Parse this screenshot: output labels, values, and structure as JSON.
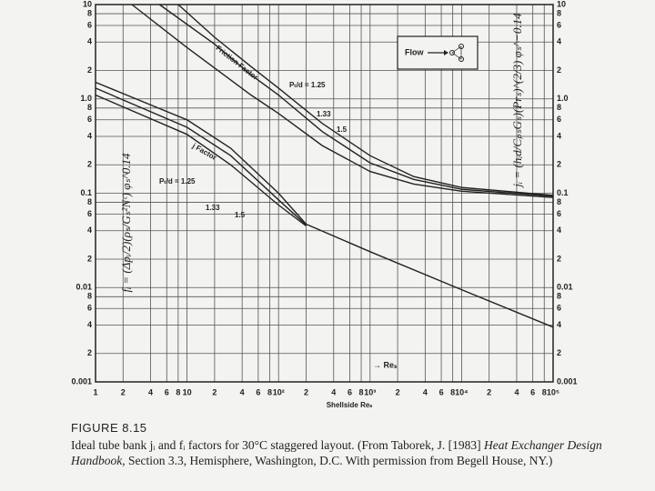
{
  "chart_data": {
    "type": "line",
    "xlabel": "Shellside Reₛ",
    "x_arrow_label": "→ Reₛ",
    "ylabel_left": "fᵢ = (Δpᵢ/2)(ρₛ/Gₛ²Nᶜ) φₛ^0.14",
    "ylabel_right": "jᵢ = (hᵢd/CₚₛGₛ)(Prₛ)^(2/3) φₛ^−0.14",
    "flow_label": "Flow",
    "annotations": [
      "Friction Factor",
      "j Factor",
      "Pₜ/d = 1.25",
      "1.33",
      "1.5",
      "Pₜ/d = 1.25",
      "1.33",
      "1.5"
    ],
    "log_x": true,
    "log_y": true,
    "grid": true,
    "xlim": [
      1,
      100000
    ],
    "ylim": [
      0.001,
      10
    ],
    "xticks": [
      1,
      2,
      4,
      6,
      8,
      10,
      {
        "value": 20,
        "label": "2"
      },
      {
        "value": 40,
        "label": "4"
      },
      {
        "value": 60,
        "label": "6"
      },
      {
        "value": 80,
        "label": "8"
      },
      {
        "value": 100,
        "label": "10²"
      },
      {
        "value": 200,
        "label": "2"
      },
      {
        "value": 400,
        "label": "4"
      },
      {
        "value": 600,
        "label": "6"
      },
      {
        "value": 800,
        "label": "8"
      },
      {
        "value": 1000,
        "label": "10³"
      },
      {
        "value": 2000,
        "label": "2"
      },
      {
        "value": 4000,
        "label": "4"
      },
      {
        "value": 6000,
        "label": "6"
      },
      {
        "value": 8000,
        "label": "8"
      },
      {
        "value": 10000,
        "label": "10⁴"
      },
      {
        "value": 20000,
        "label": "2"
      },
      {
        "value": 40000,
        "label": "4"
      },
      {
        "value": 60000,
        "label": "6"
      },
      {
        "value": 80000,
        "label": "8"
      },
      {
        "value": 100000,
        "label": "10⁵"
      }
    ],
    "yticks": [
      10,
      8,
      6,
      4,
      2,
      {
        "value": 1,
        "label": "1.0"
      },
      {
        "value": 0.8,
        "label": "8"
      },
      {
        "value": 0.6,
        "label": "6"
      },
      {
        "value": 0.4,
        "label": "4"
      },
      {
        "value": 0.2,
        "label": "2"
      },
      0.1,
      {
        "value": 0.08,
        "label": "8"
      },
      {
        "value": 0.06,
        "label": "6"
      },
      {
        "value": 0.04,
        "label": "4"
      },
      {
        "value": 0.02,
        "label": "2"
      },
      0.01,
      {
        "value": 0.008,
        "label": "8"
      },
      {
        "value": 0.006,
        "label": "6"
      },
      {
        "value": 0.004,
        "label": "4"
      },
      {
        "value": 0.002,
        "label": "2"
      },
      0.001
    ],
    "series": [
      {
        "color": "#222222",
        "x": [
          8,
          20,
          50,
          100,
          300,
          1000,
          3000,
          10000,
          100000
        ],
        "values": [
          10,
          4.5,
          2.2,
          1.3,
          0.55,
          0.25,
          0.15,
          0.115,
          0.095
        ]
      },
      {
        "color": "#222222",
        "x": [
          5,
          20,
          50,
          100,
          300,
          1000,
          3000,
          10000,
          100000
        ],
        "values": [
          10,
          3.8,
          1.8,
          1.1,
          0.45,
          0.21,
          0.14,
          0.11,
          0.093
        ]
      },
      {
        "color": "#222222",
        "x": [
          2.5,
          10,
          50,
          100,
          300,
          1000,
          3000,
          10000,
          100000
        ],
        "values": [
          10,
          3.5,
          1.1,
          0.7,
          0.32,
          0.17,
          0.125,
          0.105,
          0.09
        ]
      },
      {
        "color": "#222222",
        "x": [
          1,
          10,
          30,
          100,
          200,
          1000,
          10000,
          100000
        ],
        "values": [
          1.5,
          0.6,
          0.3,
          0.1,
          0.047,
          0.024,
          0.0095,
          0.0038
        ]
      },
      {
        "color": "#222222",
        "x": [
          1,
          10,
          30,
          100,
          200
        ],
        "values": [
          1.3,
          0.5,
          0.25,
          0.085,
          0.046
        ]
      },
      {
        "color": "#222222",
        "x": [
          1,
          10,
          30,
          100,
          200
        ],
        "values": [
          1.1,
          0.42,
          0.2,
          0.075,
          0.045
        ]
      }
    ]
  },
  "caption": {
    "figure": "FIGURE 8.15",
    "parts": [
      "Ideal tube bank jᵢ and fᵢ factors for 30°C staggered layout. (From Taborek, J. [1983] ",
      "Heat Exchanger Design Handbook",
      ", Section 3.3, Hemisphere, Washington, D.C. With permission from Begell House, NY.)"
    ]
  }
}
